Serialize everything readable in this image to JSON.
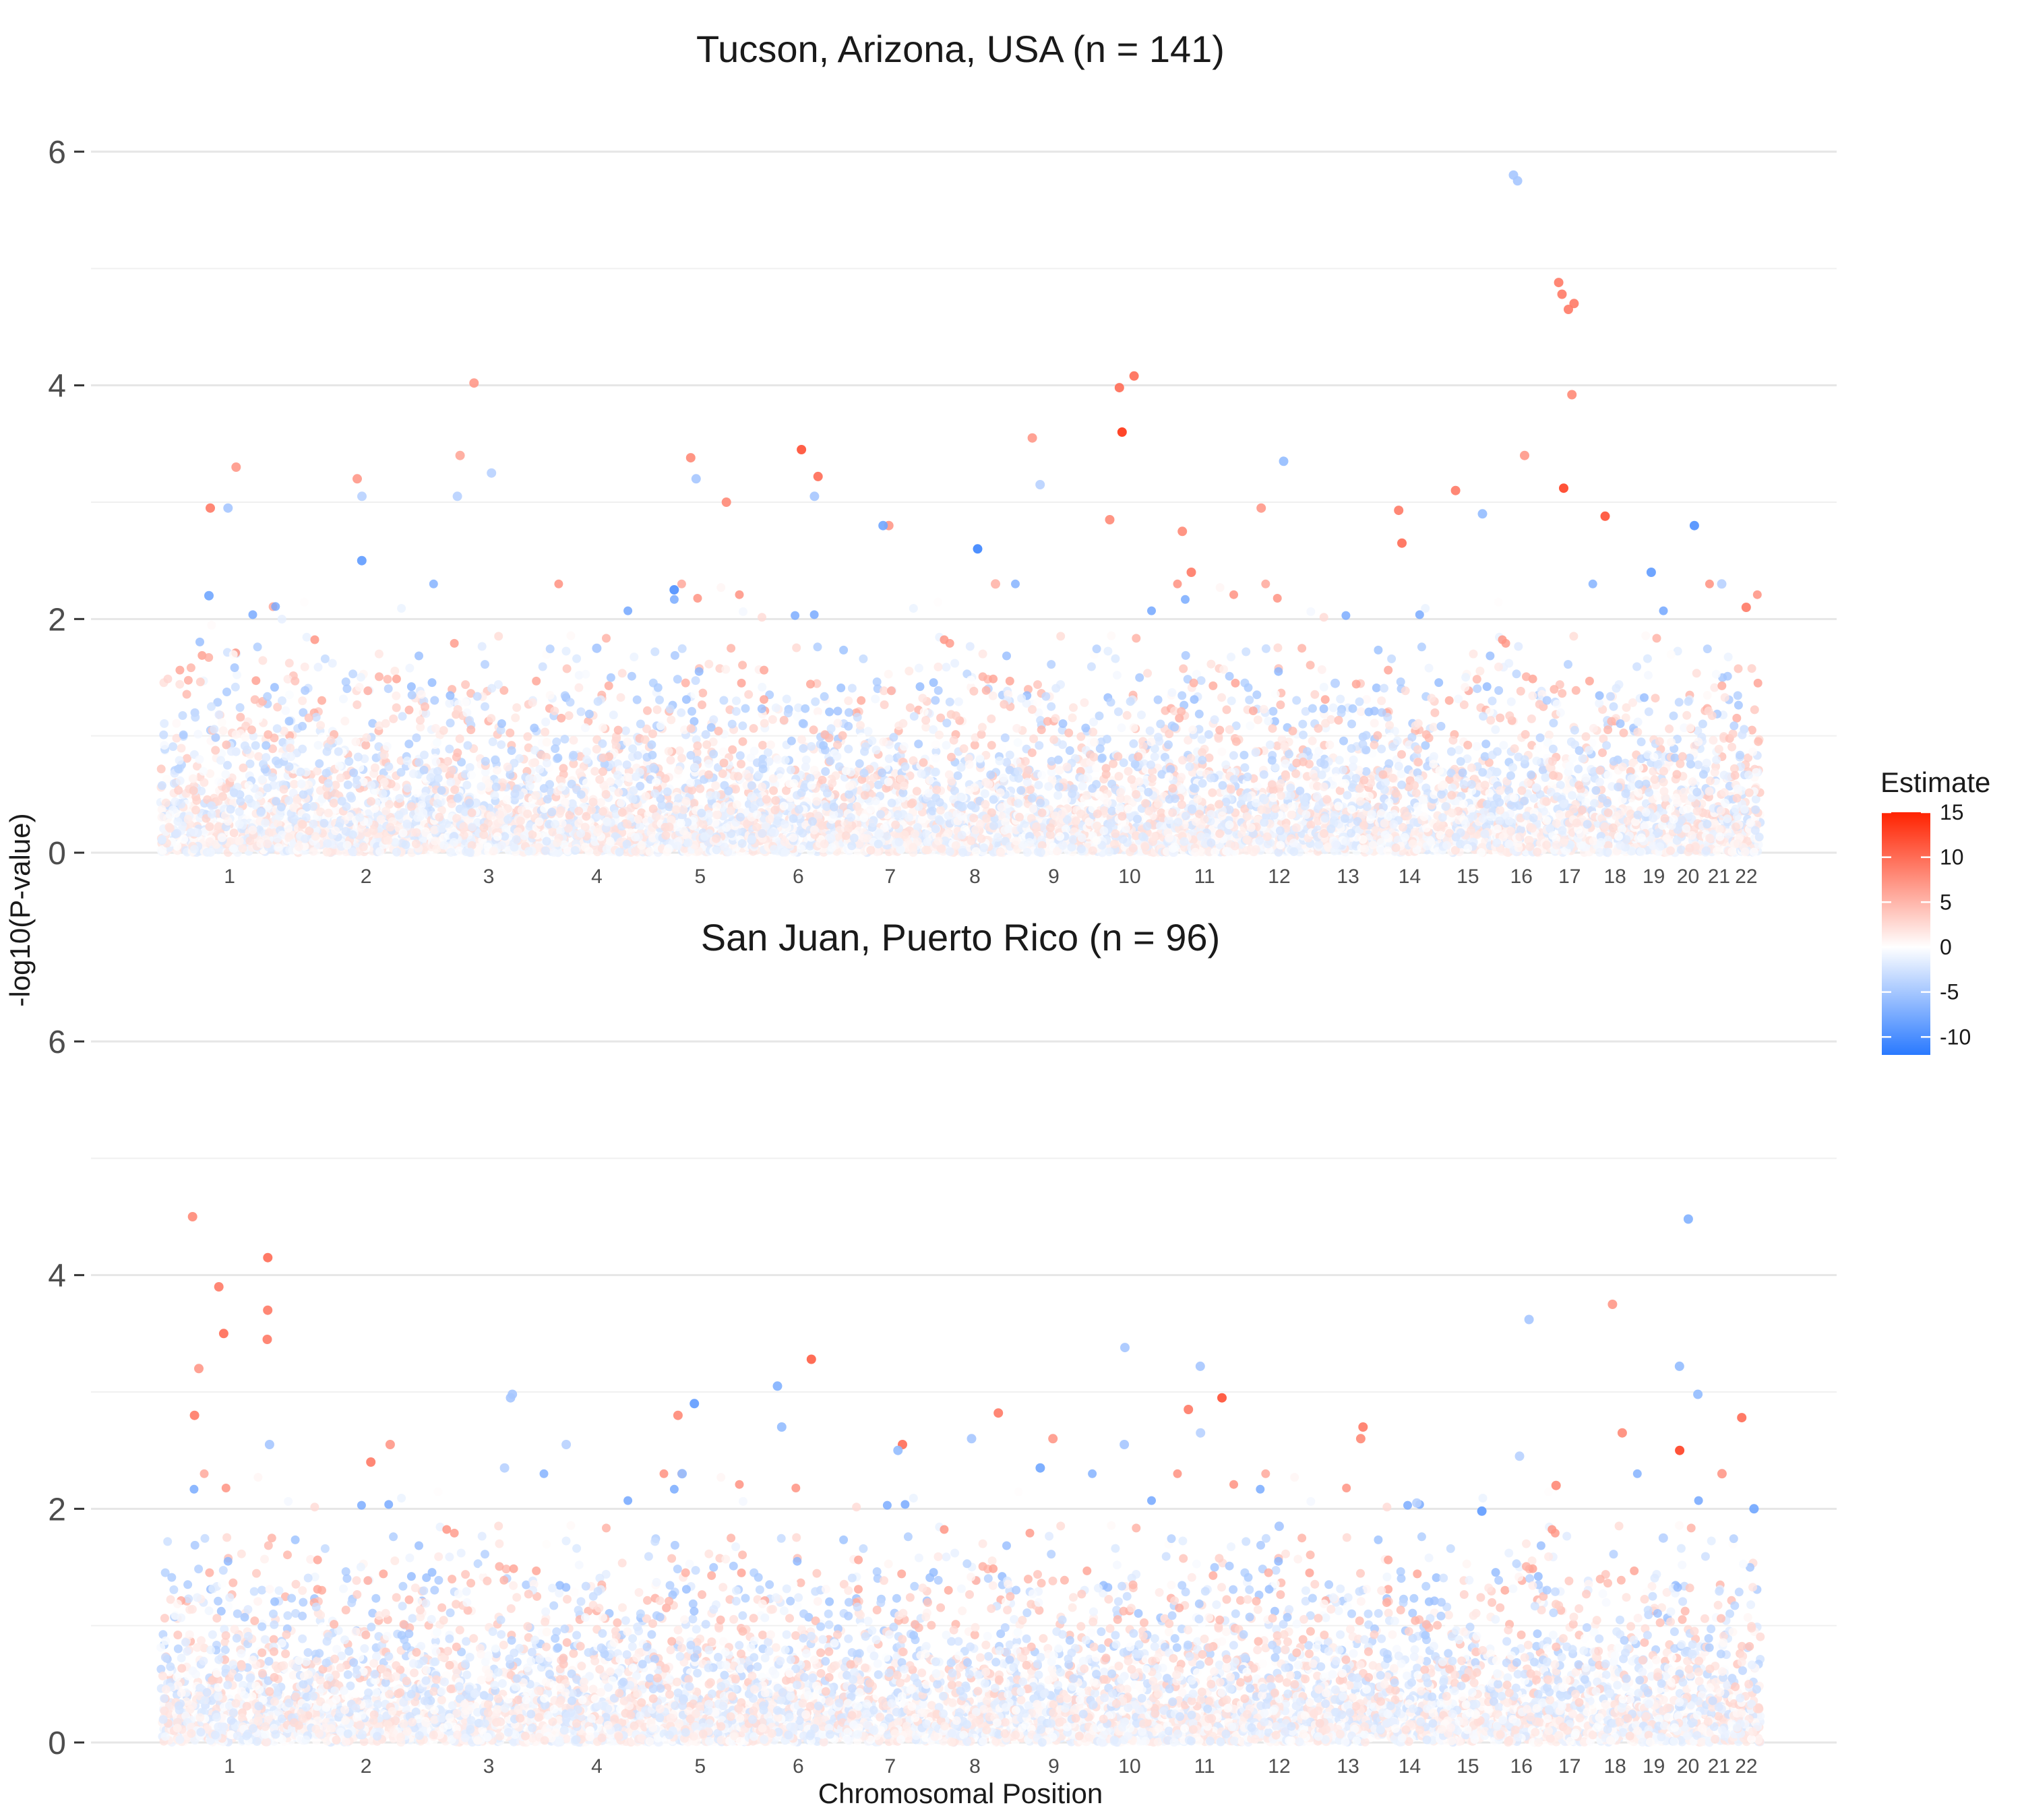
{
  "chart_data": {
    "type": "scatter",
    "subtype": "manhattan",
    "xlabel": "Chromosomal Position",
    "ylabel": "-log10(P-value)",
    "y_ticks": [
      0,
      2,
      4,
      6
    ],
    "ylim": [
      0,
      6
    ],
    "grid": true,
    "chromosomes": [
      "1",
      "2",
      "3",
      "4",
      "5",
      "6",
      "7",
      "8",
      "9",
      "10",
      "11",
      "12",
      "13",
      "14",
      "15",
      "16",
      "17",
      "18",
      "19",
      "20",
      "21",
      "22"
    ],
    "legend": {
      "title": "Estimate",
      "position": "right",
      "ticks": [
        15,
        10,
        5,
        0,
        -5,
        -10
      ],
      "range": [
        -12,
        15
      ],
      "colors": {
        "low": "#2979ff",
        "mid": "#ffffff",
        "high": "#ff2200"
      }
    },
    "panels": [
      {
        "title": "Tucson, Arizona, USA (n = 141)",
        "peaks": [
          {
            "chr": "1",
            "y": 3.3,
            "est": 7
          },
          {
            "chr": "1",
            "y": 2.95,
            "est": -5
          },
          {
            "chr": "1",
            "y": 2.2,
            "est": -8
          },
          {
            "chr": "1",
            "y": 2.95,
            "est": 9
          },
          {
            "chr": "2",
            "y": 3.05,
            "est": -4
          },
          {
            "chr": "2",
            "y": 3.2,
            "est": 7
          },
          {
            "chr": "2",
            "y": 2.5,
            "est": -9
          },
          {
            "chr": "3",
            "y": 4.02,
            "est": 7
          },
          {
            "chr": "3",
            "y": 3.4,
            "est": 6
          },
          {
            "chr": "3",
            "y": 3.25,
            "est": -4
          },
          {
            "chr": "3",
            "y": 3.05,
            "est": -4
          },
          {
            "chr": "4",
            "y": 1.75,
            "est": -5
          },
          {
            "chr": "5",
            "y": 3.2,
            "est": -5
          },
          {
            "chr": "5",
            "y": 3.38,
            "est": 8
          },
          {
            "chr": "5",
            "y": 3.0,
            "est": 8
          },
          {
            "chr": "5",
            "y": 2.25,
            "est": -10
          },
          {
            "chr": "6",
            "y": 3.45,
            "est": 12
          },
          {
            "chr": "6",
            "y": 3.05,
            "est": -5
          },
          {
            "chr": "6",
            "y": 3.22,
            "est": 10
          },
          {
            "chr": "7",
            "y": 2.8,
            "est": 7
          },
          {
            "chr": "7",
            "y": 2.8,
            "est": -8
          },
          {
            "chr": "8",
            "y": 2.6,
            "est": -11
          },
          {
            "chr": "8",
            "y": 2.3,
            "est": 5
          },
          {
            "chr": "9",
            "y": 3.55,
            "est": 7
          },
          {
            "chr": "9",
            "y": 3.15,
            "est": -4
          },
          {
            "chr": "10",
            "y": 3.6,
            "est": 14
          },
          {
            "chr": "10",
            "y": 4.08,
            "est": 10
          },
          {
            "chr": "10",
            "y": 3.98,
            "est": 10
          },
          {
            "chr": "10",
            "y": 2.85,
            "est": 8
          },
          {
            "chr": "11",
            "y": 2.75,
            "est": 8
          },
          {
            "chr": "11",
            "y": 2.4,
            "est": 9
          },
          {
            "chr": "12",
            "y": 3.35,
            "est": -6
          },
          {
            "chr": "12",
            "y": 2.95,
            "est": 7
          },
          {
            "chr": "13",
            "y": 1.45,
            "est": -4
          },
          {
            "chr": "14",
            "y": 2.93,
            "est": 9
          },
          {
            "chr": "14",
            "y": 2.65,
            "est": 10
          },
          {
            "chr": "15",
            "y": 3.1,
            "est": 9
          },
          {
            "chr": "15",
            "y": 2.9,
            "est": -6
          },
          {
            "chr": "16",
            "y": 5.8,
            "est": -5
          },
          {
            "chr": "16",
            "y": 5.75,
            "est": -5
          },
          {
            "chr": "16",
            "y": 3.4,
            "est": 7
          },
          {
            "chr": "17",
            "y": 4.88,
            "est": 9
          },
          {
            "chr": "17",
            "y": 4.78,
            "est": 9
          },
          {
            "chr": "17",
            "y": 4.7,
            "est": 9
          },
          {
            "chr": "17",
            "y": 4.65,
            "est": 9
          },
          {
            "chr": "17",
            "y": 3.92,
            "est": 8
          },
          {
            "chr": "17",
            "y": 3.12,
            "est": 13
          },
          {
            "chr": "18",
            "y": 2.88,
            "est": 12
          },
          {
            "chr": "19",
            "y": 2.4,
            "est": -9
          },
          {
            "chr": "20",
            "y": 2.8,
            "est": -10
          },
          {
            "chr": "21",
            "y": 2.3,
            "est": -4
          },
          {
            "chr": "22",
            "y": 2.1,
            "est": 9
          }
        ]
      },
      {
        "title": "San Juan, Puerto Rico (n = 96)",
        "peaks": [
          {
            "chr": "1",
            "y": 4.5,
            "est": 8
          },
          {
            "chr": "1",
            "y": 4.15,
            "est": 10
          },
          {
            "chr": "1",
            "y": 3.9,
            "est": 9
          },
          {
            "chr": "1",
            "y": 3.7,
            "est": 9
          },
          {
            "chr": "1",
            "y": 3.5,
            "est": 10
          },
          {
            "chr": "1",
            "y": 3.45,
            "est": 9
          },
          {
            "chr": "1",
            "y": 3.2,
            "est": 7
          },
          {
            "chr": "1",
            "y": 2.8,
            "est": 9
          },
          {
            "chr": "1",
            "y": 2.55,
            "est": -5
          },
          {
            "chr": "2",
            "y": 2.55,
            "est": 7
          },
          {
            "chr": "2",
            "y": 2.4,
            "est": 9
          },
          {
            "chr": "3",
            "y": 2.98,
            "est": -5
          },
          {
            "chr": "3",
            "y": 2.95,
            "est": -5
          },
          {
            "chr": "3",
            "y": 2.35,
            "est": -4
          },
          {
            "chr": "4",
            "y": 2.55,
            "est": -4
          },
          {
            "chr": "5",
            "y": 2.9,
            "est": -9
          },
          {
            "chr": "5",
            "y": 2.8,
            "est": 8
          },
          {
            "chr": "5",
            "y": 2.3,
            "est": -6
          },
          {
            "chr": "6",
            "y": 3.28,
            "est": 11
          },
          {
            "chr": "6",
            "y": 3.05,
            "est": -7
          },
          {
            "chr": "6",
            "y": 2.7,
            "est": -6
          },
          {
            "chr": "7",
            "y": 2.55,
            "est": 10
          },
          {
            "chr": "7",
            "y": 2.5,
            "est": -6
          },
          {
            "chr": "8",
            "y": 2.82,
            "est": 9
          },
          {
            "chr": "8",
            "y": 2.6,
            "est": -5
          },
          {
            "chr": "9",
            "y": 2.6,
            "est": 7
          },
          {
            "chr": "9",
            "y": 2.35,
            "est": -8
          },
          {
            "chr": "10",
            "y": 3.38,
            "est": -5
          },
          {
            "chr": "10",
            "y": 2.55,
            "est": -5
          },
          {
            "chr": "11",
            "y": 3.22,
            "est": -5
          },
          {
            "chr": "11",
            "y": 2.95,
            "est": 12
          },
          {
            "chr": "11",
            "y": 2.85,
            "est": 9
          },
          {
            "chr": "11",
            "y": 2.65,
            "est": -4
          },
          {
            "chr": "12",
            "y": 1.85,
            "est": -5
          },
          {
            "chr": "13",
            "y": 2.7,
            "est": 9
          },
          {
            "chr": "13",
            "y": 2.6,
            "est": 8
          },
          {
            "chr": "14",
            "y": 2.05,
            "est": -4
          },
          {
            "chr": "15",
            "y": 1.98,
            "est": -9
          },
          {
            "chr": "16",
            "y": 3.62,
            "est": -5
          },
          {
            "chr": "16",
            "y": 2.45,
            "est": -4
          },
          {
            "chr": "17",
            "y": 2.2,
            "est": 8
          },
          {
            "chr": "18",
            "y": 3.75,
            "est": 7
          },
          {
            "chr": "18",
            "y": 2.65,
            "est": 8
          },
          {
            "chr": "19",
            "y": 1.75,
            "est": -4
          },
          {
            "chr": "20",
            "y": 4.48,
            "est": -7
          },
          {
            "chr": "20",
            "y": 3.22,
            "est": -6
          },
          {
            "chr": "20",
            "y": 2.98,
            "est": -6
          },
          {
            "chr": "20",
            "y": 2.5,
            "est": 13
          },
          {
            "chr": "21",
            "y": 2.3,
            "est": 7
          },
          {
            "chr": "22",
            "y": 2.78,
            "est": 10
          },
          {
            "chr": "22",
            "y": 2.0,
            "est": -8
          }
        ]
      }
    ]
  }
}
